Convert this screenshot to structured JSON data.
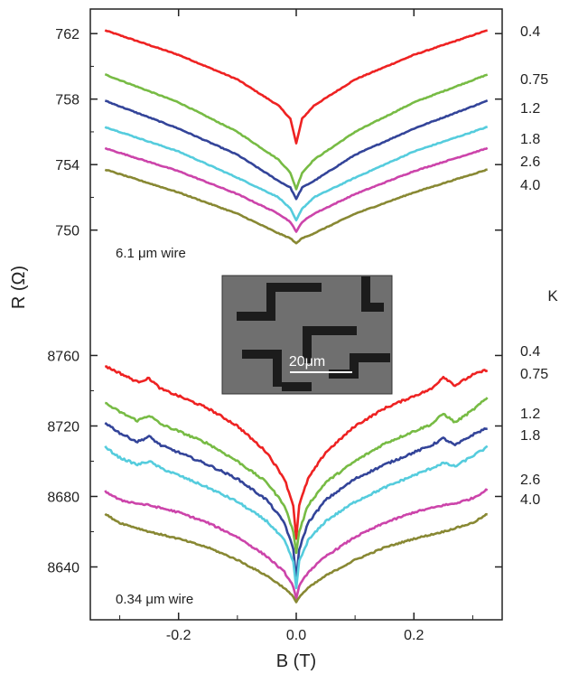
{
  "figure": {
    "ylabel": "R (Ω)",
    "xlabel": "B (T)",
    "temp_unit_label": "K",
    "inset": {
      "scale_label": "20μm"
    }
  },
  "chart_data": [
    {
      "type": "line",
      "panel": "top",
      "annotation": "6.1 μm wire",
      "xlim": [
        -0.35,
        0.35
      ],
      "ylim": [
        747.5,
        763.5
      ],
      "yticks": [
        750,
        754,
        758,
        762
      ],
      "xticks": [
        -0.2,
        0.0,
        0.2
      ],
      "xtick_labels": [
        "-0.2",
        "0.0",
        "0.2"
      ],
      "series": [
        {
          "name": "0.4",
          "color": "#ee2222",
          "rough": 0.05,
          "points": [
            [
              -0.325,
              762.2
            ],
            [
              -0.2,
              760.7
            ],
            [
              -0.1,
              759.2
            ],
            [
              -0.03,
              757.6
            ],
            [
              -0.01,
              756.8
            ],
            [
              0,
              755.3
            ],
            [
              0.01,
              756.8
            ],
            [
              0.03,
              757.6
            ],
            [
              0.1,
              759.2
            ],
            [
              0.2,
              760.7
            ],
            [
              0.325,
              762.2
            ]
          ]
        },
        {
          "name": "0.75",
          "color": "#77bb44",
          "rough": 0.05,
          "points": [
            [
              -0.325,
              759.5
            ],
            [
              -0.2,
              757.8
            ],
            [
              -0.1,
              756.0
            ],
            [
              -0.03,
              754.3
            ],
            [
              -0.01,
              753.5
            ],
            [
              0,
              752.5
            ],
            [
              0.01,
              753.5
            ],
            [
              0.03,
              754.3
            ],
            [
              0.1,
              756.0
            ],
            [
              0.2,
              757.8
            ],
            [
              0.325,
              759.5
            ]
          ]
        },
        {
          "name": "1.2",
          "color": "#334499",
          "rough": 0.05,
          "points": [
            [
              -0.325,
              757.9
            ],
            [
              -0.2,
              756.2
            ],
            [
              -0.1,
              754.6
            ],
            [
              -0.03,
              753.0
            ],
            [
              -0.01,
              752.6
            ],
            [
              0,
              751.9
            ],
            [
              0.01,
              752.6
            ],
            [
              0.03,
              753.0
            ],
            [
              0.1,
              754.6
            ],
            [
              0.2,
              756.2
            ],
            [
              0.325,
              757.9
            ]
          ]
        },
        {
          "name": "1.8",
          "color": "#55ccdd",
          "rough": 0.05,
          "points": [
            [
              -0.325,
              756.3
            ],
            [
              -0.2,
              754.8
            ],
            [
              -0.1,
              753.2
            ],
            [
              -0.03,
              752.0
            ],
            [
              -0.01,
              751.3
            ],
            [
              0,
              750.6
            ],
            [
              0.01,
              751.3
            ],
            [
              0.03,
              752.0
            ],
            [
              0.1,
              753.2
            ],
            [
              0.2,
              754.8
            ],
            [
              0.325,
              756.3
            ]
          ]
        },
        {
          "name": "2.6",
          "color": "#cc44aa",
          "rough": 0.05,
          "points": [
            [
              -0.325,
              755.0
            ],
            [
              -0.2,
              753.6
            ],
            [
              -0.1,
              752.2
            ],
            [
              -0.03,
              751.0
            ],
            [
              -0.01,
              750.5
            ],
            [
              0,
              749.9
            ],
            [
              0.01,
              750.5
            ],
            [
              0.03,
              751.0
            ],
            [
              0.1,
              752.2
            ],
            [
              0.2,
              753.6
            ],
            [
              0.325,
              755.0
            ]
          ]
        },
        {
          "name": "4.0",
          "color": "#888833",
          "rough": 0.05,
          "points": [
            [
              -0.325,
              753.7
            ],
            [
              -0.2,
              752.3
            ],
            [
              -0.1,
              751.0
            ],
            [
              -0.03,
              749.8
            ],
            [
              -0.01,
              749.5
            ],
            [
              0,
              749.2
            ],
            [
              0.01,
              749.5
            ],
            [
              0.03,
              749.8
            ],
            [
              0.1,
              751.0
            ],
            [
              0.2,
              752.3
            ],
            [
              0.325,
              753.7
            ]
          ]
        }
      ]
    },
    {
      "type": "line",
      "panel": "bottom",
      "annotation": "0.34 μm wire",
      "xlim": [
        -0.35,
        0.35
      ],
      "ylim": [
        8610,
        8771
      ],
      "yticks": [
        8640,
        8680,
        8720,
        8760
      ],
      "xticks": [
        -0.2,
        0.0,
        0.2
      ],
      "xtick_labels": [
        "-0.2",
        "0.0",
        "0.2"
      ],
      "series": [
        {
          "name": "0.4",
          "color": "#ee2222",
          "rough": 1.2,
          "points": [
            [
              -0.325,
              8754
            ],
            [
              -0.3,
              8750
            ],
            [
              -0.27,
              8745
            ],
            [
              -0.25,
              8747
            ],
            [
              -0.23,
              8741
            ],
            [
              -0.2,
              8737
            ],
            [
              -0.15,
              8730
            ],
            [
              -0.1,
              8720
            ],
            [
              -0.05,
              8705
            ],
            [
              -0.02,
              8690
            ],
            [
              -0.005,
              8675
            ],
            [
              0,
              8656
            ],
            [
              0.005,
              8675
            ],
            [
              0.02,
              8690
            ],
            [
              0.05,
              8705
            ],
            [
              0.1,
              8720
            ],
            [
              0.15,
              8730
            ],
            [
              0.2,
              8737
            ],
            [
              0.23,
              8741
            ],
            [
              0.25,
              8748
            ],
            [
              0.27,
              8743
            ],
            [
              0.3,
              8749
            ],
            [
              0.325,
              8752
            ]
          ]
        },
        {
          "name": "0.75",
          "color": "#77bb44",
          "rough": 1.2,
          "points": [
            [
              -0.325,
              8733
            ],
            [
              -0.3,
              8728
            ],
            [
              -0.27,
              8723
            ],
            [
              -0.25,
              8726
            ],
            [
              -0.23,
              8721
            ],
            [
              -0.2,
              8717
            ],
            [
              -0.15,
              8710
            ],
            [
              -0.1,
              8700
            ],
            [
              -0.05,
              8688
            ],
            [
              -0.02,
              8675
            ],
            [
              -0.005,
              8660
            ],
            [
              0,
              8648
            ],
            [
              0.005,
              8660
            ],
            [
              0.02,
              8675
            ],
            [
              0.05,
              8688
            ],
            [
              0.1,
              8700
            ],
            [
              0.15,
              8710
            ],
            [
              0.2,
              8717
            ],
            [
              0.23,
              8721
            ],
            [
              0.25,
              8727
            ],
            [
              0.27,
              8722
            ],
            [
              0.3,
              8729
            ],
            [
              0.325,
              8736
            ]
          ]
        },
        {
          "name": "1.2",
          "color": "#334499",
          "rough": 1.2,
          "points": [
            [
              -0.325,
              8722
            ],
            [
              -0.3,
              8716
            ],
            [
              -0.27,
              8711
            ],
            [
              -0.25,
              8714
            ],
            [
              -0.23,
              8709
            ],
            [
              -0.2,
              8705
            ],
            [
              -0.15,
              8698
            ],
            [
              -0.1,
              8690
            ],
            [
              -0.05,
              8678
            ],
            [
              -0.02,
              8665
            ],
            [
              -0.005,
              8650
            ],
            [
              0,
              8633
            ],
            [
              0.005,
              8650
            ],
            [
              0.02,
              8665
            ],
            [
              0.05,
              8678
            ],
            [
              0.1,
              8690
            ],
            [
              0.15,
              8698
            ],
            [
              0.2,
              8705
            ],
            [
              0.23,
              8709
            ],
            [
              0.25,
              8713
            ],
            [
              0.27,
              8709
            ],
            [
              0.3,
              8715
            ],
            [
              0.325,
              8719
            ]
          ]
        },
        {
          "name": "1.8",
          "color": "#55ccdd",
          "rough": 1.2,
          "points": [
            [
              -0.325,
              8708
            ],
            [
              -0.3,
              8702
            ],
            [
              -0.27,
              8698
            ],
            [
              -0.25,
              8700
            ],
            [
              -0.23,
              8696
            ],
            [
              -0.2,
              8692
            ],
            [
              -0.15,
              8685
            ],
            [
              -0.1,
              8677
            ],
            [
              -0.05,
              8666
            ],
            [
              -0.02,
              8655
            ],
            [
              -0.005,
              8643
            ],
            [
              0,
              8628
            ],
            [
              0.005,
              8643
            ],
            [
              0.02,
              8655
            ],
            [
              0.05,
              8666
            ],
            [
              0.1,
              8677
            ],
            [
              0.15,
              8685
            ],
            [
              0.2,
              8692
            ],
            [
              0.23,
              8696
            ],
            [
              0.25,
              8699
            ],
            [
              0.27,
              8697
            ],
            [
              0.3,
              8703
            ],
            [
              0.325,
              8708
            ]
          ]
        },
        {
          "name": "2.6",
          "color": "#cc44aa",
          "rough": 1.0,
          "points": [
            [
              -0.325,
              8683
            ],
            [
              -0.3,
              8678
            ],
            [
              -0.27,
              8676
            ],
            [
              -0.25,
              8675
            ],
            [
              -0.2,
              8671
            ],
            [
              -0.15,
              8665
            ],
            [
              -0.1,
              8657
            ],
            [
              -0.05,
              8646
            ],
            [
              -0.02,
              8637
            ],
            [
              -0.005,
              8629
            ],
            [
              0,
              8622
            ],
            [
              0.005,
              8629
            ],
            [
              0.02,
              8637
            ],
            [
              0.05,
              8646
            ],
            [
              0.1,
              8657
            ],
            [
              0.15,
              8665
            ],
            [
              0.2,
              8671
            ],
            [
              0.25,
              8675
            ],
            [
              0.27,
              8676
            ],
            [
              0.3,
              8679
            ],
            [
              0.325,
              8684
            ]
          ]
        },
        {
          "name": "4.0",
          "color": "#888833",
          "rough": 0.8,
          "points": [
            [
              -0.325,
              8670
            ],
            [
              -0.3,
              8665
            ],
            [
              -0.25,
              8660
            ],
            [
              -0.2,
              8656
            ],
            [
              -0.15,
              8651
            ],
            [
              -0.1,
              8644
            ],
            [
              -0.05,
              8635
            ],
            [
              -0.02,
              8628
            ],
            [
              -0.005,
              8623
            ],
            [
              0,
              8620
            ],
            [
              0.005,
              8623
            ],
            [
              0.02,
              8628
            ],
            [
              0.05,
              8635
            ],
            [
              0.1,
              8644
            ],
            [
              0.15,
              8651
            ],
            [
              0.2,
              8656
            ],
            [
              0.25,
              8660
            ],
            [
              0.3,
              8665
            ],
            [
              0.325,
              8670
            ]
          ]
        }
      ]
    }
  ]
}
